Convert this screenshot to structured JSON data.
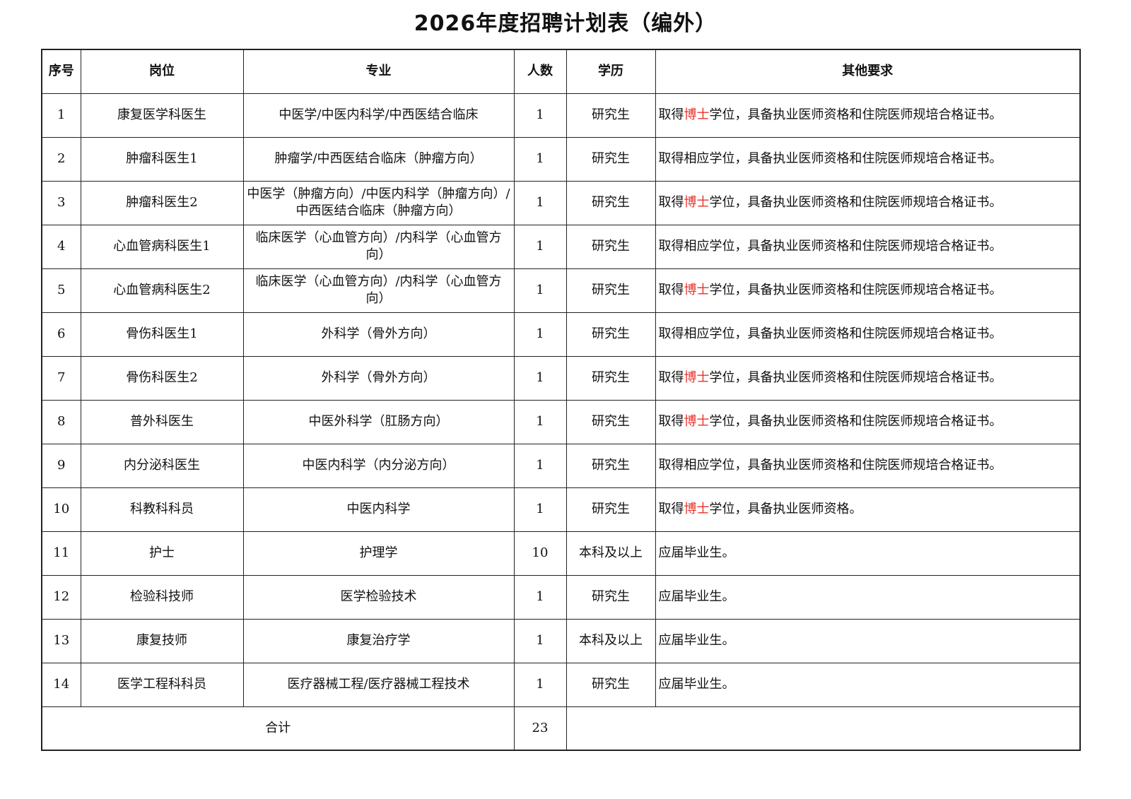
{
  "title": "2026年度招聘计划表（编外）",
  "headers": [
    "序号",
    "岗位",
    "专业",
    "人数",
    "学历",
    "其他要求"
  ],
  "colors": {
    "highlight": "#e8322b"
  },
  "rows": [
    {
      "no": "1",
      "post": "康复医学科医生",
      "major": "中医学/中医内科学/中西医结合临床",
      "count": "1",
      "edu": "研究生",
      "req": {
        "pre": "取得",
        "hl": "博士",
        "post": "学位，具备执业医师资格和住院医师规培合格证书。"
      }
    },
    {
      "no": "2",
      "post": "肿瘤科医生1",
      "major": "肿瘤学/中西医结合临床（肿瘤方向）",
      "count": "1",
      "edu": "研究生",
      "req": {
        "pre": "取得相应学位，具备执业医师资格和住院医师规培合格证书。"
      }
    },
    {
      "no": "3",
      "post": "肿瘤科医生2",
      "major": "中医学（肿瘤方向）/中医内科学（肿瘤方向）/中西医结合临床（肿瘤方向）",
      "count": "1",
      "edu": "研究生",
      "req": {
        "pre": "取得",
        "hl": "博士",
        "post": "学位，具备执业医师资格和住院医师规培合格证书。"
      }
    },
    {
      "no": "4",
      "post": "心血管病科医生1",
      "major": "临床医学（心血管方向）/内科学（心血管方向）",
      "count": "1",
      "edu": "研究生",
      "req": {
        "pre": "取得相应学位，具备执业医师资格和住院医师规培合格证书。"
      }
    },
    {
      "no": "5",
      "post": "心血管病科医生2",
      "major": "临床医学（心血管方向）/内科学（心血管方向）",
      "count": "1",
      "edu": "研究生",
      "req": {
        "pre": "取得",
        "hl": "博士",
        "post": "学位，具备执业医师资格和住院医师规培合格证书。"
      }
    },
    {
      "no": "6",
      "post": "骨伤科医生1",
      "major": "外科学（骨外方向）",
      "count": "1",
      "edu": "研究生",
      "req": {
        "pre": "取得相应学位，具备执业医师资格和住院医师规培合格证书。"
      }
    },
    {
      "no": "7",
      "post": "骨伤科医生2",
      "major": "外科学（骨外方向）",
      "count": "1",
      "edu": "研究生",
      "req": {
        "pre": "取得",
        "hl": "博士",
        "post": "学位，具备执业医师资格和住院医师规培合格证书。"
      }
    },
    {
      "no": "8",
      "post": "普外科医生",
      "major": "中医外科学（肛肠方向）",
      "count": "1",
      "edu": "研究生",
      "req": {
        "pre": "取得",
        "hl": "博士",
        "post": "学位，具备执业医师资格和住院医师规培合格证书。"
      }
    },
    {
      "no": "9",
      "post": "内分泌科医生",
      "major": "中医内科学（内分泌方向）",
      "count": "1",
      "edu": "研究生",
      "req": {
        "pre": "取得相应学位，具备执业医师资格和住院医师规培合格证书。"
      }
    },
    {
      "no": "10",
      "post": "科教科科员",
      "major": "中医内科学",
      "count": "1",
      "edu": "研究生",
      "req": {
        "pre": "取得",
        "hl": "博士",
        "post": "学位，具备执业医师资格。"
      }
    },
    {
      "no": "11",
      "post": "护士",
      "major": "护理学",
      "count": "10",
      "edu": "本科及以上",
      "req": {
        "pre": "应届毕业生。"
      }
    },
    {
      "no": "12",
      "post": "检验科技师",
      "major": "医学检验技术",
      "count": "1",
      "edu": "研究生",
      "req": {
        "pre": "应届毕业生。"
      }
    },
    {
      "no": "13",
      "post": "康复技师",
      "major": "康复治疗学",
      "count": "1",
      "edu": "本科及以上",
      "req": {
        "pre": "应届毕业生。"
      }
    },
    {
      "no": "14",
      "post": "医学工程科科员",
      "major": "医疗器械工程/医疗器械工程技术",
      "count": "1",
      "edu": "研究生",
      "req": {
        "pre": "应届毕业生。"
      }
    }
  ],
  "total": {
    "label": "合计",
    "count": "23"
  }
}
